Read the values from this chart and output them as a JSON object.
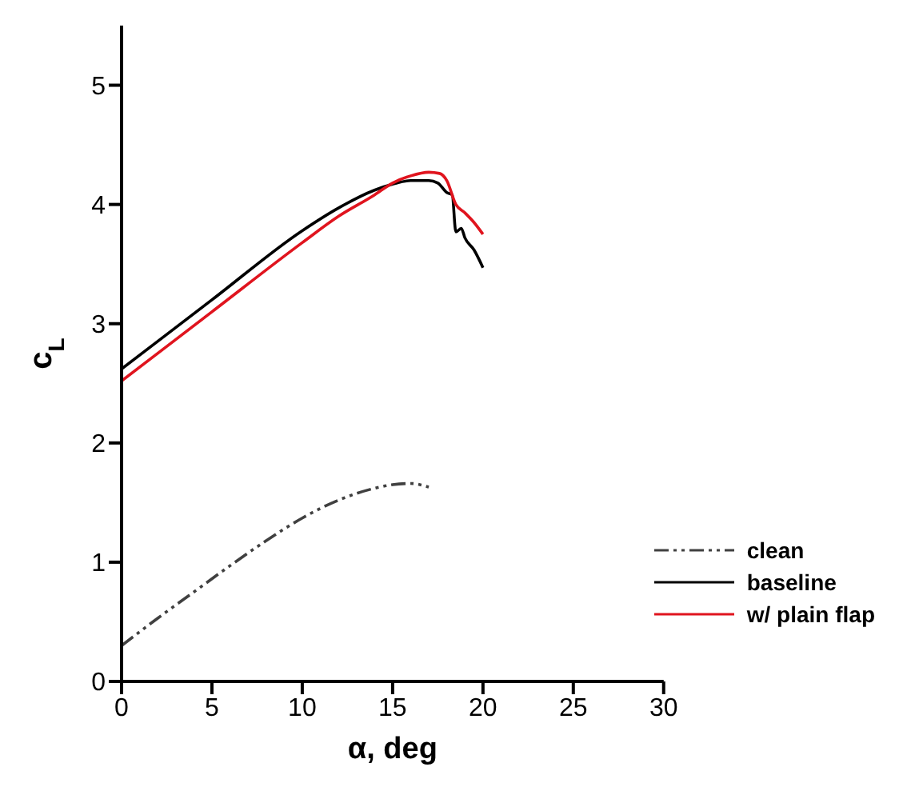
{
  "chart_data": {
    "type": "line",
    "xlabel": "α, deg",
    "ylabel": "c$_{L}$",
    "xlim": [
      0,
      30
    ],
    "xticks": [
      0,
      5,
      10,
      15,
      20,
      25,
      30
    ],
    "ylim": [
      0,
      5.5
    ],
    "yticks": [
      0,
      1,
      2,
      3,
      4,
      5
    ],
    "grid": false,
    "legend": "bottom right",
    "marker": "none",
    "series": [
      {
        "name": "clean",
        "color": "#404040",
        "line_style": "dashdotdot",
        "x": [
          0,
          2,
          4,
          6,
          8,
          10,
          12,
          14,
          15,
          16,
          17
        ],
        "values": [
          0.3,
          0.53,
          0.75,
          0.97,
          1.18,
          1.37,
          1.52,
          1.62,
          1.65,
          1.66,
          1.63
        ]
      },
      {
        "name": "baseline",
        "color": "#000000",
        "line_style": "solid",
        "x": [
          0,
          5,
          10,
          12,
          14,
          15,
          16,
          17,
          17.5,
          18,
          18.3,
          18.5,
          18.8,
          19,
          19.5,
          20
        ],
        "values": [
          2.62,
          3.2,
          3.78,
          3.97,
          4.12,
          4.17,
          4.2,
          4.2,
          4.18,
          4.1,
          4.08,
          3.77,
          3.8,
          3.72,
          3.62,
          3.47
        ]
      },
      {
        "name": "w/ plain flap",
        "color": "#e0141e",
        "line_style": "solid",
        "x": [
          0,
          5,
          10,
          12,
          14,
          15,
          16,
          17,
          17.6,
          18,
          18.5,
          19,
          19.5,
          20
        ],
        "values": [
          2.52,
          3.1,
          3.68,
          3.9,
          4.08,
          4.18,
          4.24,
          4.27,
          4.26,
          4.2,
          4,
          3.93,
          3.85,
          3.75
        ]
      }
    ]
  }
}
